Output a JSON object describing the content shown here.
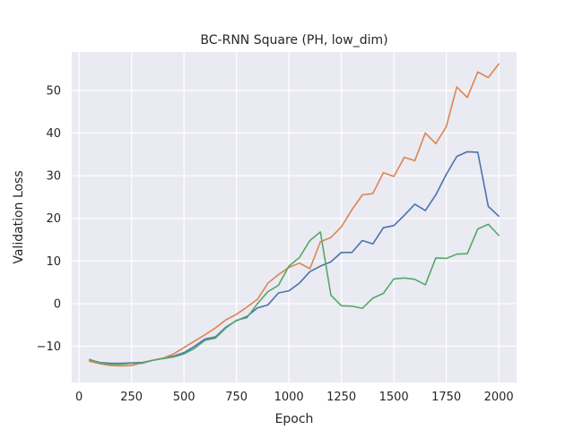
{
  "chart_data": {
    "type": "line",
    "title": "BC-RNN Square (PH, low_dim)",
    "xlabel": "Epoch",
    "ylabel": "Validation Loss",
    "xlim": [
      -35,
      2085
    ],
    "ylim": [
      -18.5,
      59
    ],
    "xticks": [
      0,
      250,
      500,
      750,
      1000,
      1250,
      1500,
      1750,
      2000
    ],
    "yticks": [
      -10,
      0,
      10,
      20,
      30,
      40,
      50
    ],
    "grid": true,
    "background": "#eaeaf2",
    "gridcolor": "#ffffff",
    "x": [
      50,
      100,
      150,
      200,
      250,
      300,
      350,
      400,
      450,
      500,
      550,
      600,
      650,
      700,
      750,
      800,
      850,
      900,
      950,
      1000,
      1050,
      1100,
      1150,
      1200,
      1250,
      1300,
      1350,
      1400,
      1450,
      1500,
      1550,
      1600,
      1650,
      1700,
      1750,
      1800,
      1850,
      1900,
      1950,
      2000
    ],
    "series": [
      {
        "color": "#4c72b0",
        "values": [
          -13.2,
          -13.8,
          -14.0,
          -14.0,
          -13.9,
          -13.8,
          -13.3,
          -12.8,
          -12.3,
          -11.5,
          -10.0,
          -8.3,
          -7.8,
          -5.5,
          -4.0,
          -3.0,
          -1.0,
          -0.3,
          2.5,
          3.0,
          4.8,
          7.5,
          8.8,
          9.8,
          12.0,
          12.0,
          14.8,
          14.0,
          17.8,
          18.3,
          20.7,
          23.3,
          21.8,
          25.5,
          30.3,
          34.5,
          35.6,
          35.5,
          22.8,
          20.5
        ]
      },
      {
        "color": "#dd8452",
        "values": [
          -13.5,
          -14.1,
          -14.5,
          -14.6,
          -14.5,
          -13.9,
          -13.3,
          -12.8,
          -11.8,
          -10.3,
          -8.8,
          -7.3,
          -5.7,
          -3.8,
          -2.5,
          -0.8,
          1.0,
          4.8,
          6.8,
          8.5,
          9.5,
          8.2,
          14.5,
          15.5,
          18.0,
          22.0,
          25.5,
          25.8,
          30.7,
          29.8,
          34.3,
          33.5,
          40.0,
          37.5,
          41.5,
          50.8,
          48.3,
          54.3,
          53.0,
          56.2
        ]
      },
      {
        "color": "#55a868",
        "values": [
          -13.1,
          -13.9,
          -14.2,
          -14.2,
          -14.0,
          -14.0,
          -13.3,
          -12.9,
          -12.5,
          -11.8,
          -10.5,
          -8.6,
          -8.1,
          -5.7,
          -3.9,
          -3.3,
          0.0,
          2.8,
          4.3,
          8.8,
          10.8,
          14.8,
          16.8,
          2.0,
          -0.5,
          -0.6,
          -1.1,
          1.3,
          2.4,
          5.8,
          6.0,
          5.7,
          4.4,
          10.7,
          10.6,
          11.6,
          11.7,
          17.5,
          18.6,
          16.0
        ]
      }
    ]
  }
}
